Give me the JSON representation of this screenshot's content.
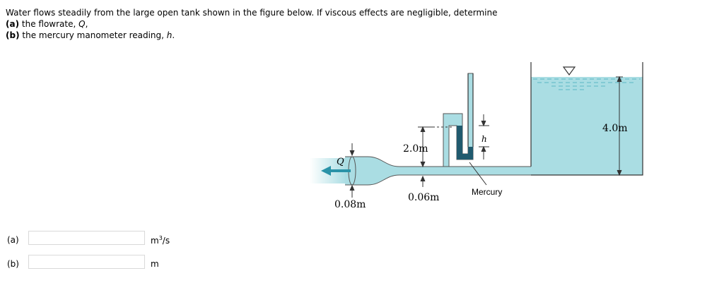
{
  "problem": {
    "intro": "Water flows steadily from the large open tank shown in the figure below. If viscous effects are negligible, determine",
    "part_a": {
      "tag": "(a)",
      "text_before": " the flowrate, ",
      "var": "Q",
      "text_after": ","
    },
    "part_b": {
      "tag": "(b)",
      "text_before": " the mercury manometer reading, ",
      "var": "h",
      "text_after": "."
    }
  },
  "figure": {
    "flow_label": "Q",
    "dim_height": "4.0m",
    "dim_elevation": "2.0m",
    "dim_manometer": "h",
    "dim_outlet_diameter": "0.08m",
    "dim_pipe_diameter": "0.06m",
    "mercury_label": "Mercury",
    "colors": {
      "water": "#aadde3",
      "mercury": "#205a6e",
      "arrow": "#2a93a8",
      "outline": "#333333"
    }
  },
  "answers": [
    {
      "label": "(a)",
      "value": "",
      "unit_base": "m",
      "unit_sup": "3",
      "unit_rest": "/s"
    },
    {
      "label": "(b)",
      "value": "",
      "unit_base": "m",
      "unit_sup": "",
      "unit_rest": ""
    }
  ]
}
